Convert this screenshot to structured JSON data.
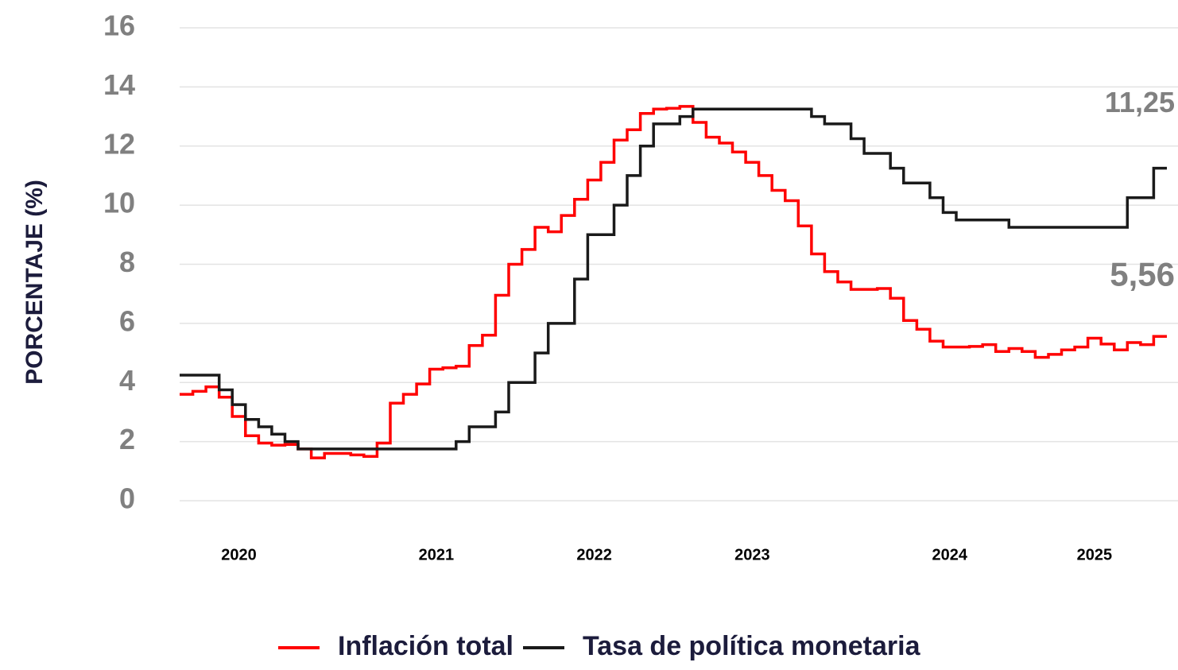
{
  "chart_data": {
    "type": "step",
    "ylabel": "PORCENTAJE (%)",
    "categories": [
      null,
      null,
      null,
      null,
      "2020",
      null,
      null,
      null,
      null,
      null,
      null,
      null,
      null,
      null,
      null,
      null,
      null,
      null,
      null,
      "2021",
      null,
      null,
      null,
      null,
      null,
      null,
      null,
      null,
      null,
      null,
      null,
      "2022",
      null,
      null,
      null,
      null,
      null,
      null,
      null,
      null,
      null,
      null,
      null,
      "2023",
      null,
      null,
      null,
      null,
      null,
      null,
      null,
      null,
      null,
      null,
      null,
      null,
      null,
      null,
      "2024",
      null,
      null,
      null,
      null,
      null,
      null,
      null,
      null,
      null,
      null,
      "2025",
      null,
      null,
      null,
      null,
      null
    ],
    "series": [
      {
        "name": "Inflación total",
        "color": "#ff0000",
        "end_label": "5,56",
        "values": [
          3.6,
          3.7,
          3.85,
          3.5,
          2.85,
          2.2,
          1.95,
          1.88,
          1.9,
          1.75,
          1.45,
          1.6,
          1.6,
          1.55,
          1.5,
          1.95,
          3.3,
          3.6,
          3.95,
          4.45,
          4.5,
          4.55,
          5.25,
          5.6,
          6.95,
          8.0,
          8.5,
          9.25,
          9.1,
          9.65,
          10.2,
          10.85,
          11.45,
          12.2,
          12.55,
          13.1,
          13.25,
          13.28,
          13.34,
          12.8,
          12.3,
          12.1,
          11.8,
          11.45,
          11.0,
          10.5,
          10.15,
          9.3,
          8.35,
          7.75,
          7.4,
          7.15,
          7.15,
          7.18,
          6.85,
          6.1,
          5.8,
          5.4,
          5.2,
          5.2,
          5.22,
          5.28,
          5.05,
          5.15,
          5.05,
          4.85,
          4.95,
          5.1,
          5.2,
          5.5,
          5.3,
          5.1,
          5.35,
          5.28,
          5.56
        ]
      },
      {
        "name": "Tasa de política monetaria",
        "color": "#1a1a1a",
        "end_label": "11,25",
        "values": [
          4.25,
          4.25,
          4.25,
          3.75,
          3.25,
          2.75,
          2.5,
          2.25,
          2.0,
          1.75,
          1.75,
          1.75,
          1.75,
          1.75,
          1.75,
          1.75,
          1.75,
          1.75,
          1.75,
          1.75,
          1.75,
          2.0,
          2.5,
          2.5,
          3.0,
          4.0,
          4.0,
          5.0,
          6.0,
          6.0,
          7.5,
          9.0,
          9.0,
          10.0,
          11.0,
          12.0,
          12.75,
          12.75,
          13.0,
          13.25,
          13.25,
          13.25,
          13.25,
          13.25,
          13.25,
          13.25,
          13.25,
          13.25,
          13.0,
          12.75,
          12.75,
          12.25,
          11.75,
          11.75,
          11.25,
          10.75,
          10.75,
          10.25,
          9.75,
          9.5,
          9.5,
          9.5,
          9.5,
          9.25,
          9.25,
          9.25,
          9.25,
          9.25,
          9.25,
          9.25,
          9.25,
          9.25,
          10.25,
          10.25,
          11.25
        ]
      }
    ],
    "ylim": [
      0,
      16
    ],
    "yticks": [
      0,
      2,
      4,
      6,
      8,
      10,
      12,
      14,
      16
    ],
    "grid": true,
    "legend": "bottom"
  }
}
